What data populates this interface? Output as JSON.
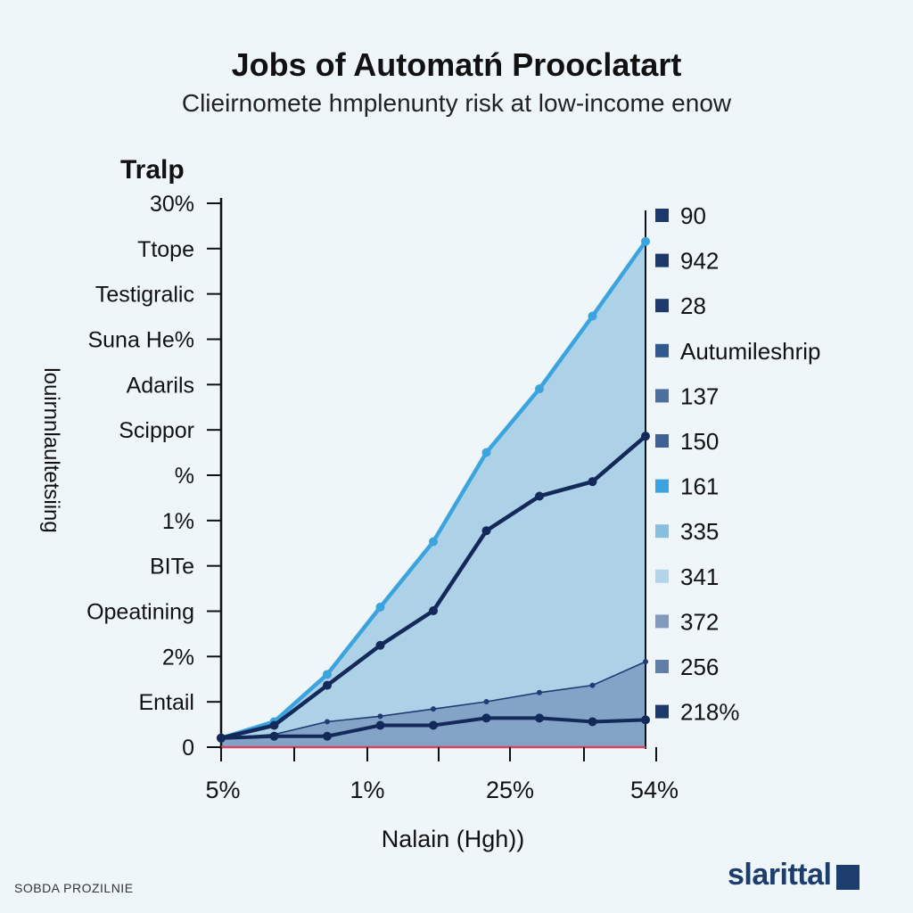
{
  "header": {
    "title": "Jobs of Automatń Prooclatart",
    "subtitle": "Clieirnomete hmplenunty risk at low-income enow"
  },
  "footer": {
    "source": "SOBDA PROZILNIE",
    "brand": "slarittal"
  },
  "colors": {
    "background": "#eef6fa",
    "area_upper": "#a9d0e6",
    "area_lower": "#7f9fc3",
    "line_top": "#3ba4de",
    "line_mid": "#13295a",
    "line_low": "#1f3d74",
    "baseline": "#d6455b"
  },
  "chart_data": {
    "type": "line",
    "title": "Jobs of Automatń Prooclatart",
    "subtitle": "Clieirnomete hmplenunty risk at low-income enow",
    "xlabel": "Nalain (Hgh))",
    "ylabel": "louirnnlaultetsiing",
    "y_axis_header": "Tralp",
    "x_tick_labels": [
      "5%",
      "1%",
      "25%",
      "54%"
    ],
    "y_tick_labels": [
      "30%",
      "Ttope",
      "Testigralic",
      "Suna He%",
      "Adarils",
      "Scippor",
      "%",
      "1%",
      "BITe",
      "Opeatining",
      "2%",
      "Entail",
      "0"
    ],
    "x": [
      1,
      2,
      3,
      4,
      5,
      6,
      7,
      8,
      9
    ],
    "xlim": [
      1,
      9
    ],
    "ylim": [
      0,
      30
    ],
    "grid": false,
    "legend_position": "right",
    "legend": [
      {
        "label": "90",
        "color": "#1b3a6b"
      },
      {
        "label": "942",
        "color": "#1b3a6b"
      },
      {
        "label": "28",
        "color": "#1d3b6c"
      },
      {
        "label": "Autumileshrip",
        "color": "#2f5a8f"
      },
      {
        "label": "137",
        "color": "#4d6f9e"
      },
      {
        "label": "150",
        "color": "#3e6293"
      },
      {
        "label": "161",
        "color": "#3ba4de"
      },
      {
        "label": "335",
        "color": "#86bfe0"
      },
      {
        "label": "341",
        "color": "#b2d5ea"
      },
      {
        "label": "372",
        "color": "#8199bd"
      },
      {
        "label": "256",
        "color": "#5f7fa8"
      },
      {
        "label": "218%",
        "color": "#1b3a6b"
      }
    ],
    "series": [
      {
        "values": [
          0.5,
          1.4,
          4.0,
          7.7,
          11.3,
          16.2,
          19.7,
          23.7,
          27.8
        ]
      },
      {
        "values": [
          0.5,
          1.2,
          3.4,
          5.6,
          7.5,
          11.9,
          13.8,
          14.6,
          17.1
        ]
      },
      {
        "values": [
          0.5,
          0.7,
          1.4,
          1.7,
          2.1,
          2.5,
          3.0,
          3.4,
          4.7
        ]
      },
      {
        "values": [
          0.5,
          0.6,
          0.6,
          1.2,
          1.2,
          1.6,
          1.6,
          1.4,
          1.5
        ]
      }
    ]
  }
}
